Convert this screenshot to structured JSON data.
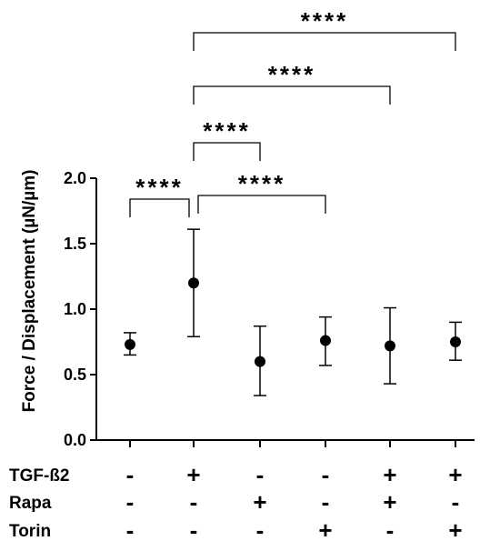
{
  "chart_data": {
    "type": "scatter",
    "ylabel": "Force / Displacement (µN/µm)",
    "ylim": [
      0.0,
      2.0
    ],
    "yticks": [
      "0.0",
      "0.5",
      "1.0",
      "1.5",
      "2.0"
    ],
    "groups": [
      {
        "mean": 0.73,
        "lower": 0.65,
        "upper": 0.82
      },
      {
        "mean": 1.2,
        "lower": 0.79,
        "upper": 1.61
      },
      {
        "mean": 0.6,
        "lower": 0.34,
        "upper": 0.87
      },
      {
        "mean": 0.76,
        "lower": 0.57,
        "upper": 0.94
      },
      {
        "mean": 0.72,
        "lower": 0.43,
        "upper": 1.01
      },
      {
        "mean": 0.75,
        "lower": 0.61,
        "upper": 0.9
      }
    ],
    "conditions": [
      {
        "label": "TGF-ß2",
        "signs": [
          "-",
          "+",
          "-",
          "-",
          "+",
          "+"
        ]
      },
      {
        "label": "Rapa",
        "signs": [
          "-",
          "-",
          "+",
          "-",
          "+",
          "-"
        ]
      },
      {
        "label": "Torin",
        "signs": [
          "-",
          "-",
          "-",
          "+",
          "-",
          "+"
        ]
      }
    ],
    "comparisons": [
      {
        "from": 0,
        "to": 1,
        "label": "****"
      },
      {
        "from": 1,
        "to": 3,
        "label": "****"
      },
      {
        "from": 1,
        "to": 2,
        "label": "****"
      },
      {
        "from": 1,
        "to": 4,
        "label": "****"
      },
      {
        "from": 1,
        "to": 5,
        "label": "****"
      }
    ]
  }
}
